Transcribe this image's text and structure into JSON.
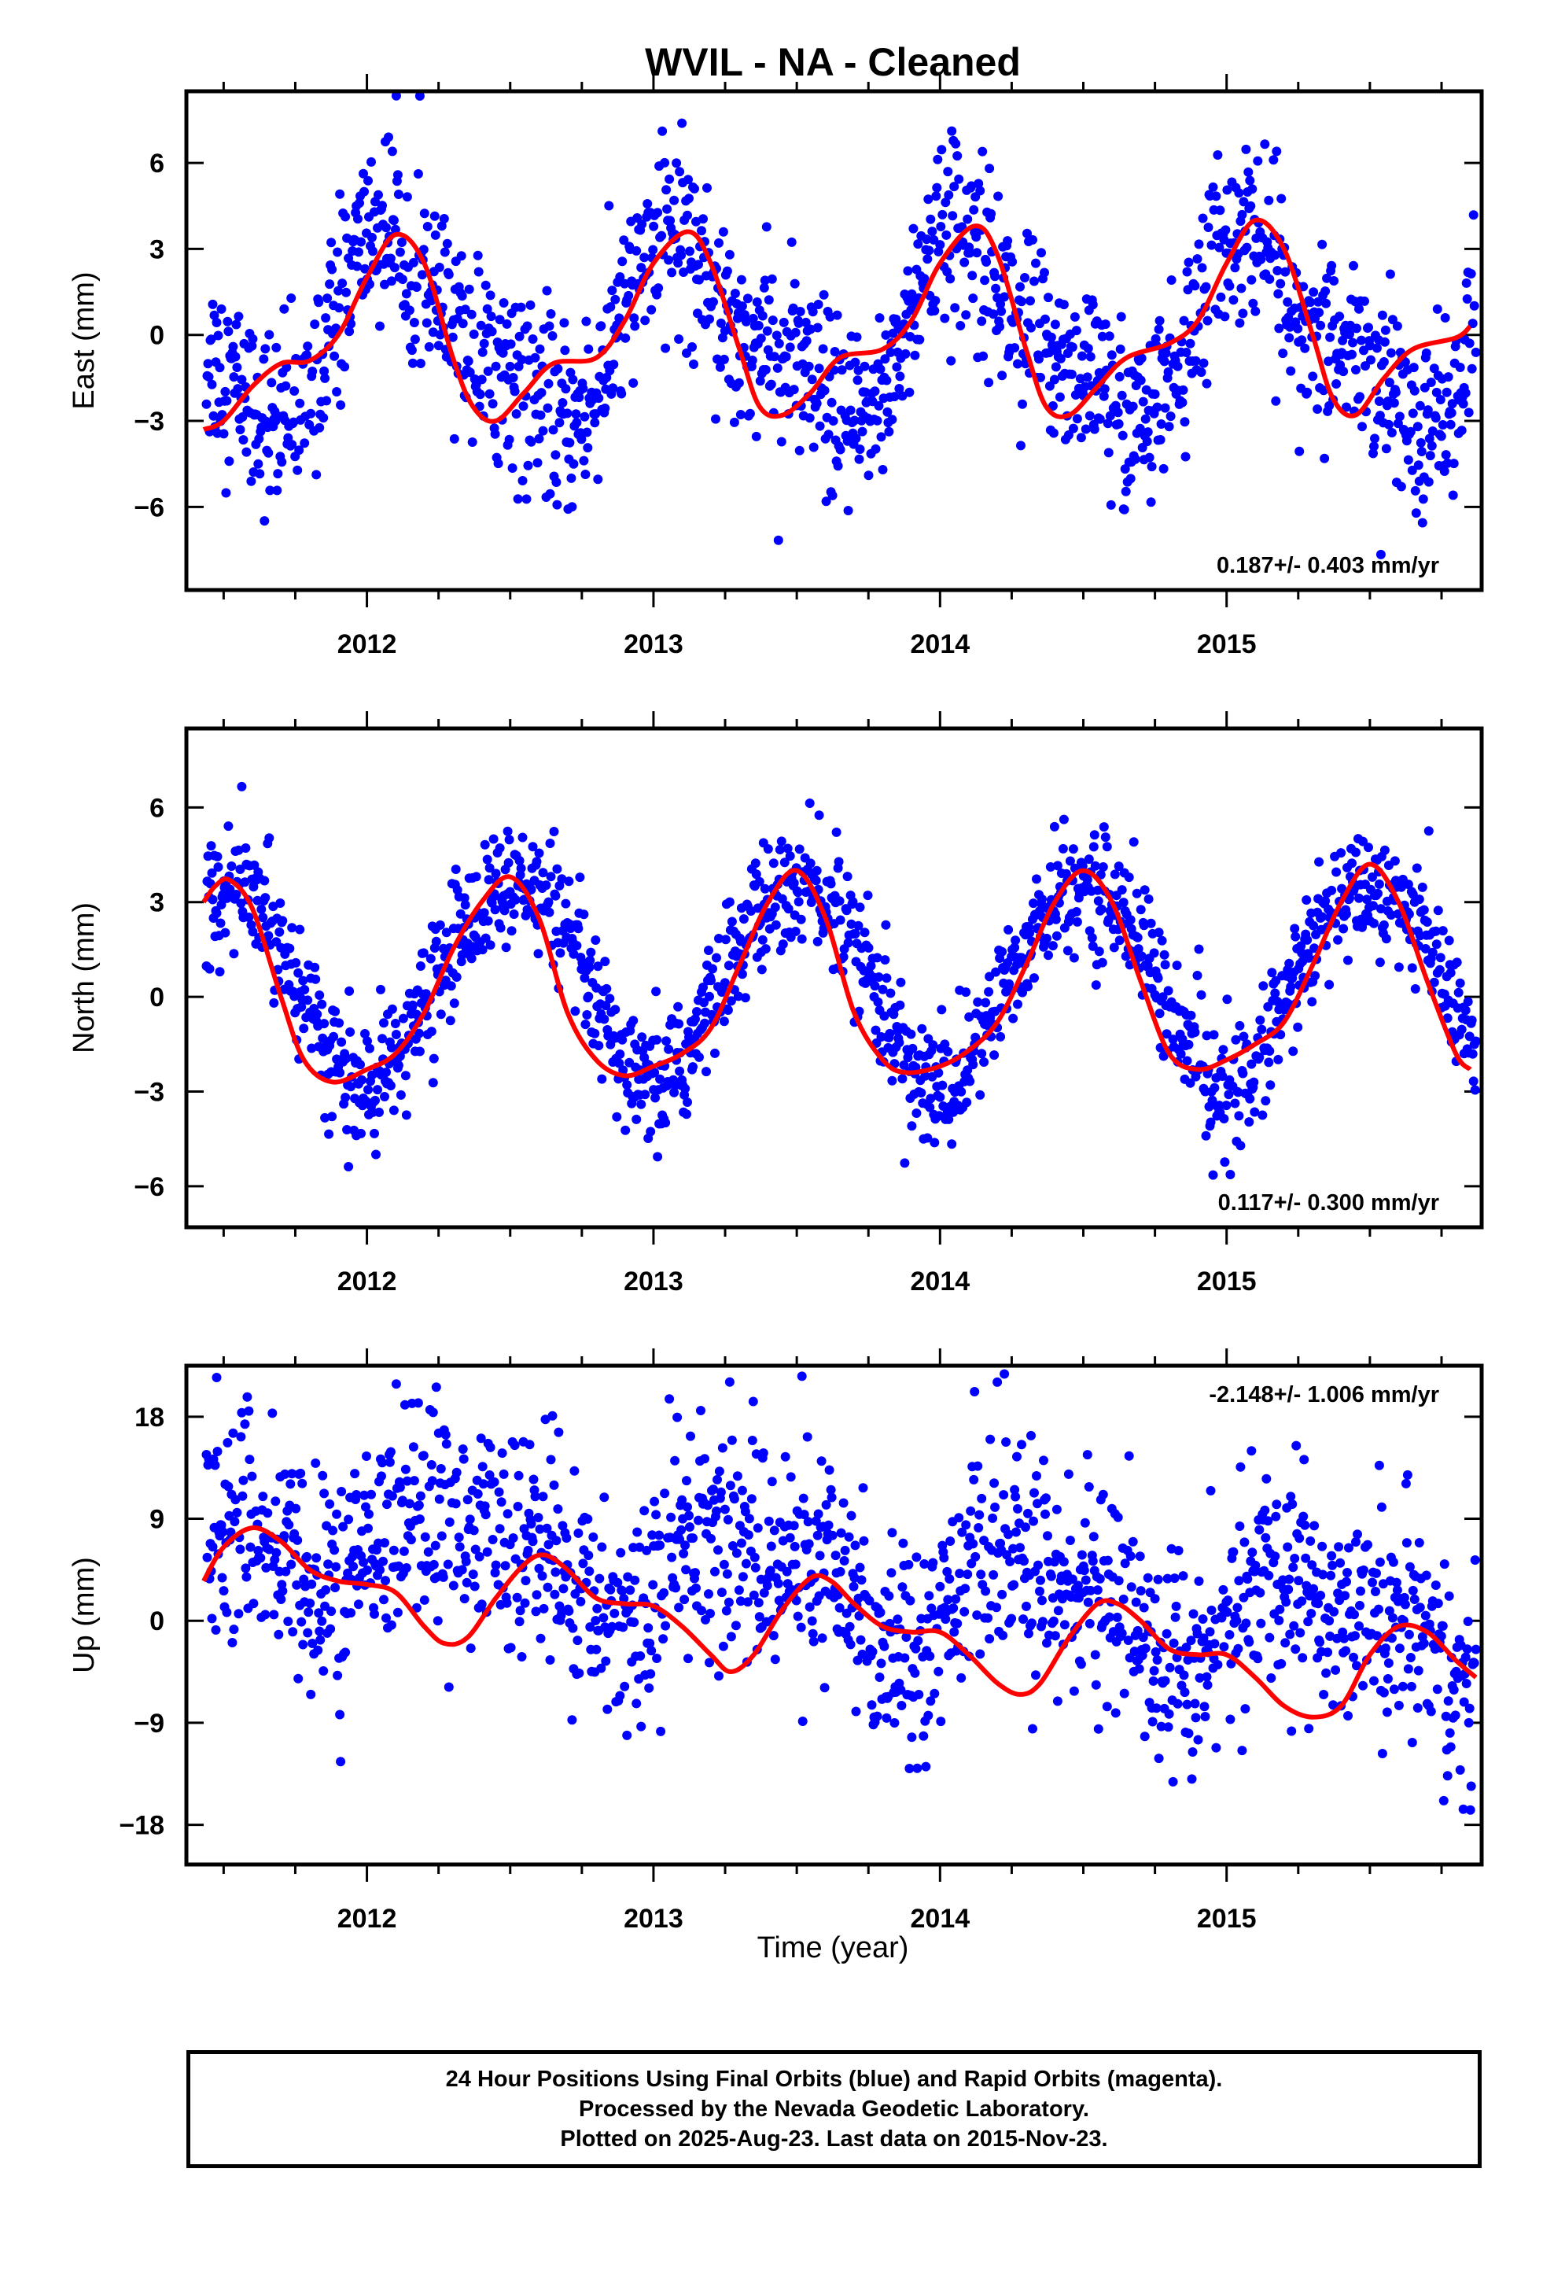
{
  "title": "WVIL  - NA - Cleaned",
  "xlabel": "Time (year)",
  "footer": {
    "line1": "24 Hour Positions Using Final Orbits (blue) and Rapid Orbits (magenta).",
    "line2": "Processed by the Nevada Geodetic Laboratory.",
    "line3": "Plotted on 2025-Aug-23. Last data on 2015-Nov-23."
  },
  "colors": {
    "points": "#0000ff",
    "model": "#ff0000",
    "frame": "#000000"
  },
  "chart_data": [
    {
      "type": "scatter",
      "component": "East",
      "ylabel": "East (mm)",
      "xlim": [
        2011.37,
        2015.89
      ],
      "ylim": [
        -8.9,
        8.5
      ],
      "yticks": [
        -6,
        -3,
        0,
        3,
        6
      ],
      "xticks": [
        2012,
        2013,
        2014,
        2015
      ],
      "rate_text": "0.187+/- 0.403 mm/yr",
      "rate_position": "bottom-right",
      "seasonal": {
        "amp1": 3.0,
        "phase1": -0.14,
        "amp2": 1.0,
        "phase2": -0.11,
        "offset": 0.1
      },
      "noise_sd": 1.6,
      "model_curve": {
        "x": [
          2011.43,
          2011.5,
          2011.6,
          2011.7,
          2011.8,
          2011.9,
          2012.0,
          2012.1,
          2012.2,
          2012.3,
          2012.37,
          2012.45,
          2012.55,
          2012.65,
          2012.8,
          2012.9,
          2013.0,
          2013.12,
          2013.2,
          2013.3,
          2013.37,
          2013.45,
          2013.55,
          2013.65,
          2013.8,
          2013.9,
          2014.0,
          2014.12,
          2014.2,
          2014.3,
          2014.37,
          2014.45,
          2014.55,
          2014.65,
          2014.8,
          2014.9,
          2015.0,
          2015.1,
          2015.2,
          2015.3,
          2015.37,
          2015.45,
          2015.55,
          2015.65,
          2015.8,
          2015.85
        ],
        "y": [
          -3.3,
          -3.0,
          -1.8,
          -1.0,
          -0.9,
          0.0,
          2.0,
          3.5,
          2.5,
          -0.8,
          -2.5,
          -3.0,
          -2.0,
          -1.0,
          -0.8,
          0.5,
          2.5,
          3.6,
          2.5,
          -0.5,
          -2.5,
          -2.8,
          -2.0,
          -0.8,
          -0.5,
          0.5,
          2.5,
          3.8,
          2.8,
          -0.5,
          -2.5,
          -2.8,
          -1.8,
          -0.8,
          -0.3,
          0.5,
          2.5,
          4.0,
          3.0,
          0.0,
          -2.2,
          -2.8,
          -1.5,
          -0.5,
          -0.1,
          0.3
        ]
      }
    },
    {
      "type": "scatter",
      "component": "North",
      "ylabel": "North (mm)",
      "xlim": [
        2011.37,
        2015.89
      ],
      "ylim": [
        -7.3,
        8.5
      ],
      "yticks": [
        -6,
        -3,
        0,
        3,
        6
      ],
      "xticks": [
        2012,
        2013,
        2014,
        2015
      ],
      "rate_text": "0.117+/- 0.300 mm/yr",
      "rate_position": "bottom-right",
      "seasonal": {
        "amp1": 3.2,
        "phase1": 0.25,
        "amp2": 0.3,
        "phase2": 0.1,
        "offset": 0.5
      },
      "noise_sd": 1.0,
      "model_curve": {
        "x": [
          2011.43,
          2011.47,
          2011.52,
          2011.6,
          2011.7,
          2011.78,
          2011.88,
          2012.0,
          2012.1,
          2012.2,
          2012.3,
          2012.4,
          2012.5,
          2012.6,
          2012.7,
          2012.8,
          2012.9,
          2013.0,
          2013.1,
          2013.2,
          2013.3,
          2013.4,
          2013.5,
          2013.6,
          2013.7,
          2013.8,
          2013.88,
          2014.0,
          2014.1,
          2014.2,
          2014.3,
          2014.4,
          2014.5,
          2014.6,
          2014.7,
          2014.8,
          2014.9,
          2015.0,
          2015.1,
          2015.2,
          2015.3,
          2015.4,
          2015.5,
          2015.6,
          2015.7,
          2015.8,
          2015.85
        ],
        "y": [
          3.0,
          3.5,
          3.7,
          2.8,
          0.0,
          -2.0,
          -2.7,
          -2.3,
          -1.8,
          -0.5,
          1.5,
          3.0,
          3.8,
          2.5,
          -0.5,
          -2.0,
          -2.5,
          -2.2,
          -1.8,
          -1.0,
          1.0,
          3.0,
          4.0,
          2.5,
          -0.5,
          -2.0,
          -2.4,
          -2.2,
          -1.7,
          -0.8,
          1.0,
          3.0,
          4.0,
          3.0,
          0.5,
          -1.8,
          -2.3,
          -2.0,
          -1.5,
          -0.8,
          1.0,
          3.0,
          4.2,
          3.0,
          0.5,
          -1.8,
          -2.3
        ]
      }
    },
    {
      "type": "scatter",
      "component": "Up",
      "ylabel": "Up (mm)",
      "xlim": [
        2011.37,
        2015.89
      ],
      "ylim": [
        -21.5,
        22.5
      ],
      "yticks": [
        -18,
        -9,
        0,
        9,
        18
      ],
      "xticks": [
        2012,
        2013,
        2014,
        2015
      ],
      "rate_text": "-2.148+/- 1.006 mm/yr",
      "rate_position": "top-right",
      "seasonal": {
        "amp1": 3.6,
        "phase1": 0.06,
        "amp2": 1.5,
        "phase2": 0.0,
        "offset": 3.6,
        "trend": -2.148
      },
      "noise_sd": 5.0,
      "model_curve": {
        "x": [
          2011.43,
          2011.5,
          2011.6,
          2011.7,
          2011.8,
          2011.9,
          2012.0,
          2012.1,
          2012.2,
          2012.27,
          2012.35,
          2012.45,
          2012.55,
          2012.62,
          2012.7,
          2012.8,
          2012.9,
          2013.0,
          2013.1,
          2013.2,
          2013.27,
          2013.35,
          2013.45,
          2013.55,
          2013.62,
          2013.7,
          2013.8,
          2013.9,
          2014.0,
          2014.1,
          2014.2,
          2014.28,
          2014.35,
          2014.45,
          2014.55,
          2014.62,
          2014.7,
          2014.8,
          2014.9,
          2015.0,
          2015.1,
          2015.2,
          2015.3,
          2015.4,
          2015.5,
          2015.6,
          2015.7,
          2015.8,
          2015.87
        ],
        "y": [
          3.5,
          6.5,
          8.2,
          7.0,
          4.5,
          3.5,
          3.2,
          2.5,
          -0.5,
          -2.0,
          -1.5,
          2.0,
          5.0,
          5.8,
          4.5,
          2.0,
          1.5,
          1.3,
          -0.5,
          -3.0,
          -4.5,
          -3.0,
          1.0,
          3.8,
          3.5,
          1.5,
          -0.5,
          -1.0,
          -1.0,
          -3.0,
          -5.5,
          -6.5,
          -5.5,
          -1.5,
          1.5,
          1.5,
          0.0,
          -2.5,
          -3.0,
          -3.0,
          -5.0,
          -7.5,
          -8.5,
          -7.5,
          -3.0,
          -0.5,
          -1.0,
          -3.5,
          -5.0
        ]
      }
    }
  ]
}
